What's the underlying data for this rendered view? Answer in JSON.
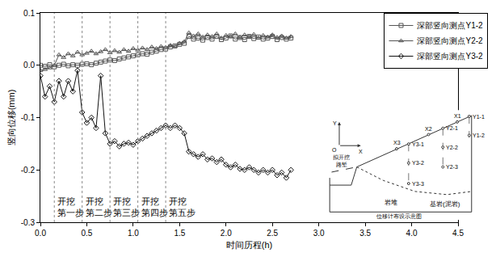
{
  "chart_data": {
    "type": "line",
    "x_label": "时间历程(h)",
    "y_label": "竖向位移(mm)",
    "x": [
      0,
      0.05,
      0.1,
      0.15,
      0.2,
      0.25,
      0.3,
      0.35,
      0.4,
      0.45,
      0.5,
      0.55,
      0.6,
      0.65,
      0.7,
      0.75,
      0.8,
      0.85,
      0.9,
      0.95,
      1,
      1.05,
      1.1,
      1.15,
      1.2,
      1.25,
      1.3,
      1.35,
      1.4,
      1.45,
      1.5,
      1.55,
      1.6,
      1.65,
      1.7,
      1.75,
      1.8,
      1.85,
      1.9,
      1.95,
      2,
      2.05,
      2.1,
      2.15,
      2.2,
      2.25,
      2.3,
      2.35,
      2.4,
      2.45,
      2.5,
      2.55,
      2.6,
      2.65,
      2.7
    ],
    "series": [
      {
        "name": "深部竖向测点Y1-2",
        "color": "#555555",
        "marker": "square",
        "line_style": "solid",
        "values": [
          0,
          -0.002,
          0.001,
          -0.003,
          0,
          0.002,
          -0.001,
          0.001,
          0,
          0.002,
          0.003,
          0.001,
          0.004,
          0.006,
          0.008,
          0.01,
          0.009,
          0.012,
          0.014,
          0.016,
          0.018,
          0.02,
          0.022,
          0.021,
          0.025,
          0.027,
          0.03,
          0.031,
          0.035,
          0.037,
          0.04,
          0.042,
          0.055,
          0.05,
          0.052,
          0.048,
          0.053,
          0.05,
          0.055,
          0.049,
          0.052,
          0.056,
          0.05,
          0.053,
          0.049,
          0.055,
          0.051,
          0.054,
          0.05,
          0.052,
          0.055,
          0.049,
          0.053,
          0.05,
          0.052
        ]
      },
      {
        "name": "深部竖向测点Y2-2",
        "color": "#555555",
        "marker": "triangle",
        "line_style": "solid",
        "values": [
          -0.01,
          -0.008,
          -0.005,
          0,
          0.02,
          0.015,
          0.022,
          0.018,
          0.025,
          0.02,
          0.023,
          0.027,
          0.022,
          0.026,
          0.03,
          0.024,
          0.028,
          0.025,
          0.03,
          0.027,
          0.032,
          0.029,
          0.033,
          0.03,
          0.035,
          0.032,
          0.036,
          0.034,
          0.038,
          0.036,
          0.042,
          0.045,
          0.062,
          0.056,
          0.06,
          0.054,
          0.058,
          0.055,
          0.06,
          0.052,
          0.057,
          0.055,
          0.06,
          0.053,
          0.058,
          0.055,
          0.059,
          0.052,
          0.057,
          0.054,
          0.058,
          0.053,
          0.056,
          0.052,
          0.055
        ]
      },
      {
        "name": "深部竖向测点Y3-2",
        "color": "#111111",
        "marker": "diamond",
        "line_style": "solid",
        "values": [
          -0.02,
          -0.06,
          -0.04,
          -0.07,
          -0.03,
          -0.06,
          -0.03,
          -0.05,
          -0.01,
          -0.09,
          -0.11,
          -0.1,
          -0.12,
          -0.02,
          -0.13,
          -0.15,
          -0.145,
          -0.155,
          -0.15,
          -0.148,
          -0.152,
          -0.145,
          -0.14,
          -0.135,
          -0.13,
          -0.125,
          -0.12,
          -0.115,
          -0.12,
          -0.115,
          -0.12,
          -0.13,
          -0.165,
          -0.17,
          -0.175,
          -0.17,
          -0.18,
          -0.178,
          -0.185,
          -0.18,
          -0.19,
          -0.195,
          -0.19,
          -0.198,
          -0.2,
          -0.195,
          -0.2,
          -0.205,
          -0.2,
          -0.205,
          -0.2,
          -0.21,
          -0.205,
          -0.215,
          -0.2
        ]
      }
    ],
    "xlim": [
      0,
      4.5
    ],
    "xticks": [
      {
        "value": 0,
        "label": "0.0"
      },
      0.5,
      {
        "value": 1,
        "label": "1.0"
      },
      1.5,
      {
        "value": 2,
        "label": "2.0"
      },
      2.5,
      {
        "value": 3,
        "label": "3.0"
      },
      3.5,
      {
        "value": 4,
        "label": "4.0"
      },
      4.5
    ],
    "ylim": [
      -0.3,
      0.1
    ],
    "yticks": [
      -0.3,
      -0.2,
      -0.1,
      {
        "value": 0,
        "label": "0.0"
      },
      0.1
    ],
    "grid": false,
    "legend": "upper right",
    "steps": [
      {
        "x": 0.15,
        "label": "开挖\n第一步"
      },
      {
        "x": 0.45,
        "label": "开挖\n第二步"
      },
      {
        "x": 0.75,
        "label": "开挖\n第三步"
      },
      {
        "x": 1.05,
        "label": "开挖\n第四步"
      },
      {
        "x": 1.35,
        "label": "开挖\n第五步"
      }
    ]
  },
  "inset": {
    "title": "位移计布设示意图",
    "axis_x": "X",
    "axis_y": "Y",
    "origin": "O",
    "points": [
      "Y3-1",
      "Y3-2",
      "Y3-3",
      "Y2-1",
      "Y2-2",
      "Y2-3",
      "Y1-1",
      "Y1-2",
      "X3",
      "X2",
      "X1"
    ],
    "cut": "拟开挖\n路堑",
    "regions": [
      "岩堆",
      "基岩(泥岩)"
    ]
  }
}
